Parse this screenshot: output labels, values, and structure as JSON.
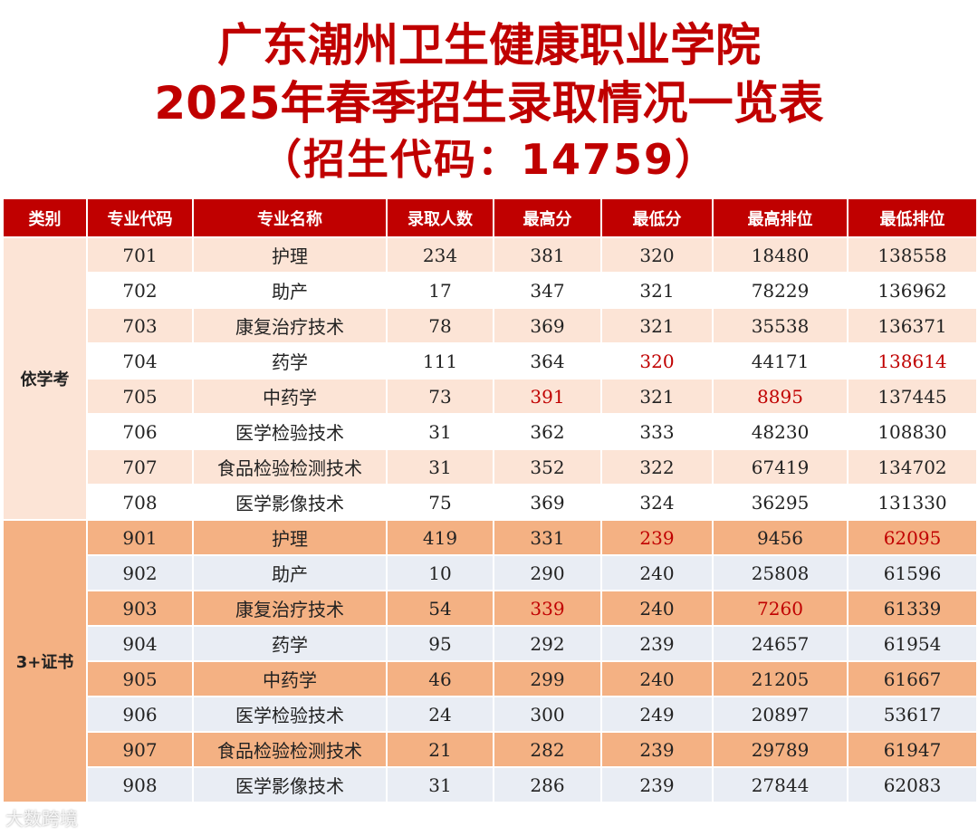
{
  "title": {
    "line1": "广东潮州卫生健康职业学院",
    "line2": "2025年春季招生录取情况一览表",
    "line3": "（招生代码：14759）"
  },
  "colors": {
    "header_bg": "#c00000",
    "highlight_text": "#c00000",
    "group1_band": "#fce4d6",
    "group2_band": "#f4b183",
    "group2_alt": "#e9edf4"
  },
  "table": {
    "headers": [
      "类别",
      "专业代码",
      "专业名称",
      "录取人数",
      "最高分",
      "最低分",
      "最高排位",
      "最低排位"
    ],
    "groups": [
      {
        "category": "依学考",
        "rows": [
          {
            "cells": [
              "701",
              "护理",
              "234",
              "381",
              "320",
              "18480",
              "138558"
            ],
            "highlight": []
          },
          {
            "cells": [
              "702",
              "助产",
              "17",
              "347",
              "321",
              "78229",
              "136962"
            ],
            "highlight": []
          },
          {
            "cells": [
              "703",
              "康复治疗技术",
              "78",
              "369",
              "321",
              "35538",
              "136371"
            ],
            "highlight": []
          },
          {
            "cells": [
              "704",
              "药学",
              "111",
              "364",
              "320",
              "44171",
              "138614"
            ],
            "highlight": [
              4,
              6
            ]
          },
          {
            "cells": [
              "705",
              "中药学",
              "73",
              "391",
              "321",
              "8895",
              "137445"
            ],
            "highlight": [
              3,
              5
            ]
          },
          {
            "cells": [
              "706",
              "医学检验技术",
              "31",
              "362",
              "333",
              "48230",
              "108830"
            ],
            "highlight": []
          },
          {
            "cells": [
              "707",
              "食品检验检测技术",
              "31",
              "352",
              "322",
              "67419",
              "134702"
            ],
            "highlight": []
          },
          {
            "cells": [
              "708",
              "医学影像技术",
              "75",
              "369",
              "324",
              "36295",
              "131330"
            ],
            "highlight": []
          }
        ]
      },
      {
        "category": "3+证书",
        "rows": [
          {
            "cells": [
              "901",
              "护理",
              "419",
              "331",
              "239",
              "9456",
              "62095"
            ],
            "highlight": [
              4,
              6
            ]
          },
          {
            "cells": [
              "902",
              "助产",
              "10",
              "290",
              "240",
              "25808",
              "61596"
            ],
            "highlight": []
          },
          {
            "cells": [
              "903",
              "康复治疗技术",
              "54",
              "339",
              "240",
              "7260",
              "61339"
            ],
            "highlight": [
              3,
              5
            ]
          },
          {
            "cells": [
              "904",
              "药学",
              "95",
              "292",
              "239",
              "24657",
              "61954"
            ],
            "highlight": []
          },
          {
            "cells": [
              "905",
              "中药学",
              "46",
              "299",
              "240",
              "21205",
              "61667"
            ],
            "highlight": []
          },
          {
            "cells": [
              "906",
              "医学检验技术",
              "24",
              "300",
              "249",
              "20897",
              "53617"
            ],
            "highlight": []
          },
          {
            "cells": [
              "907",
              "食品检验检测技术",
              "21",
              "282",
              "239",
              "29789",
              "61947"
            ],
            "highlight": []
          },
          {
            "cells": [
              "908",
              "医学影像技术",
              "31",
              "286",
              "239",
              "27844",
              "62083"
            ],
            "highlight": []
          }
        ]
      }
    ]
  },
  "watermark": "大数跨境"
}
